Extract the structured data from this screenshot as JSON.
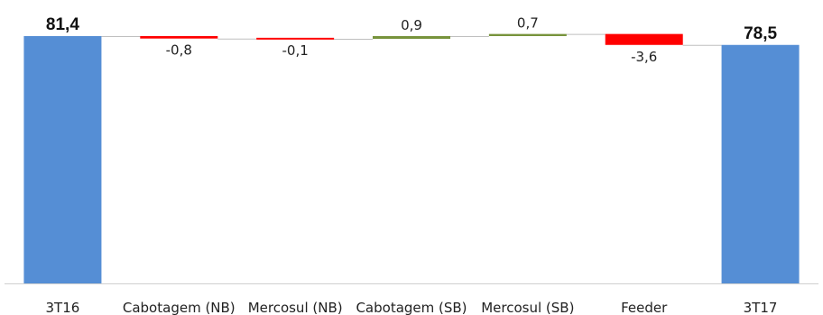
{
  "chart_data": {
    "type": "bar",
    "subtype": "waterfall",
    "title": "",
    "xlabel": "",
    "ylabel": "",
    "categories": [
      "3T16",
      "Cabotagem (NB)",
      "Mercosul (NB)",
      "Cabotagem (SB)",
      "Mercosul (SB)",
      "Feeder",
      "3T17"
    ],
    "values": [
      81.4,
      -0.8,
      -0.1,
      0.9,
      0.7,
      -3.6,
      78.5
    ],
    "labels": [
      "81,4",
      "-0,8",
      "-0,1",
      "0,9",
      "0,7",
      "-3,6",
      "78,5"
    ],
    "kinds": [
      "total",
      "delta",
      "delta",
      "delta",
      "delta",
      "delta",
      "total"
    ],
    "ylim": [
      0,
      81.4
    ],
    "grid": false,
    "legend": "none",
    "colors": {
      "total": "#558ed5",
      "decrease": "#ff0000",
      "increase": "#77933c",
      "connector": "#bfbfbf",
      "axis": "#d0d0d0"
    }
  }
}
